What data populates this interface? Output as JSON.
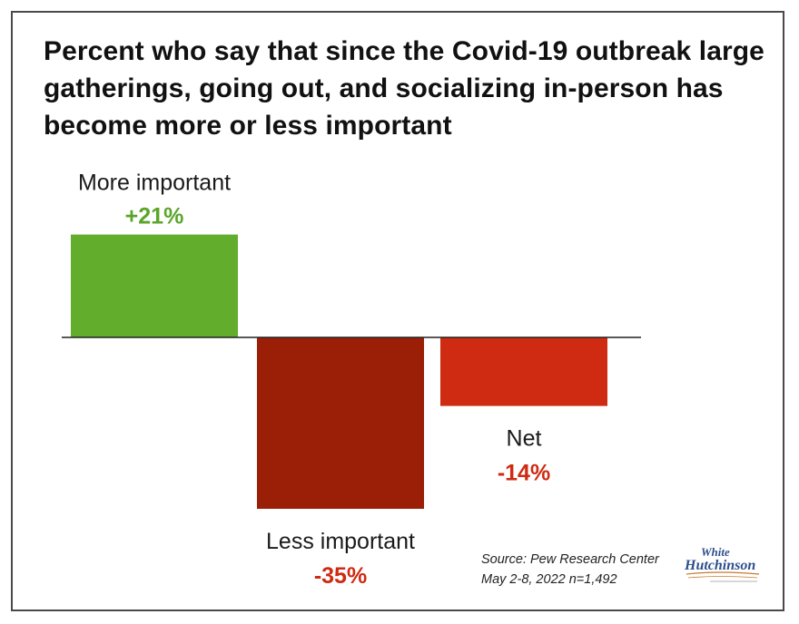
{
  "title": "Percent who say that since the Covid-19 outbreak large gatherings, going out, and socializing in-person has become more or less important",
  "source": {
    "line1": "Source: Pew Research Center",
    "line2": "May 2-8, 2022 n=1,492"
  },
  "logo": {
    "line1": "White",
    "line2": "Hutchinson"
  },
  "colors": {
    "more": "#62ad2c",
    "less": "#9a1f06",
    "net": "#cf2a12",
    "more_text": "#5aa52a",
    "less_text": "#cf2a12"
  },
  "chart_data": {
    "type": "bar",
    "categories": [
      "More important",
      "Less important",
      "Net"
    ],
    "values": [
      21,
      -35,
      -14
    ],
    "value_labels": [
      "+21%",
      "-35%",
      "-14%"
    ],
    "title": "Percent who say that since the Covid-19 outbreak large gatherings, going out, and socializing in-person has become more or less important",
    "xlabel": "",
    "ylabel": "",
    "ylim": [
      -35,
      21
    ],
    "grid": false,
    "legend": "none"
  }
}
